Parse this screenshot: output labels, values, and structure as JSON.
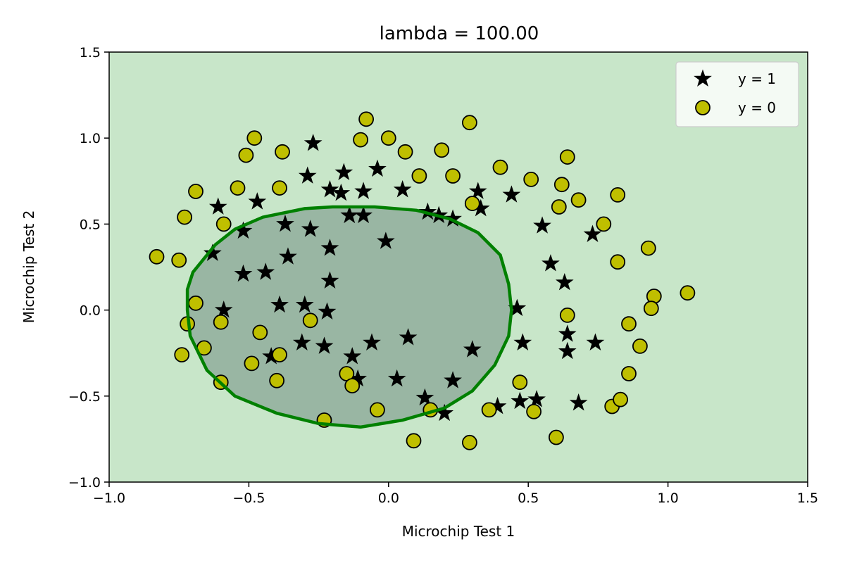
{
  "chart_data": {
    "type": "scatter",
    "title": "lambda = 100.00",
    "xlabel": "Microchip Test 1",
    "ylabel": "Microchip Test 2",
    "xlim": [
      -1.0,
      1.5
    ],
    "ylim": [
      -1.0,
      1.5
    ],
    "x_ticks": [
      "−1.0",
      "−0.5",
      "0.0",
      "0.5",
      "1.0",
      "1.5"
    ],
    "y_ticks": [
      "−1.0",
      "−0.5",
      "0.0",
      "0.5",
      "1.0",
      "1.5"
    ],
    "x_tick_values": [
      -1.0,
      -0.5,
      0.0,
      0.5,
      1.0,
      1.5
    ],
    "y_tick_values": [
      -1.0,
      -0.5,
      0.0,
      0.5,
      1.0,
      1.5
    ],
    "legend_position": "top-right",
    "colors": {
      "background_region": "#c8e6c9",
      "inner_region": "#99b6a3",
      "boundary": "#008000",
      "positive_marker": "#000000",
      "negative_marker": "#bfbf00"
    },
    "decision_boundary": {
      "name": "",
      "points": [
        [
          -0.72,
          0.12
        ],
        [
          -0.7,
          0.22
        ],
        [
          -0.62,
          0.38
        ],
        [
          -0.55,
          0.47
        ],
        [
          -0.45,
          0.54
        ],
        [
          -0.3,
          0.59
        ],
        [
          -0.2,
          0.6
        ],
        [
          -0.05,
          0.6
        ],
        [
          0.1,
          0.58
        ],
        [
          0.22,
          0.53
        ],
        [
          0.32,
          0.45
        ],
        [
          0.4,
          0.32
        ],
        [
          0.43,
          0.15
        ],
        [
          0.44,
          0.0
        ],
        [
          0.43,
          -0.15
        ],
        [
          0.38,
          -0.32
        ],
        [
          0.3,
          -0.47
        ],
        [
          0.2,
          -0.57
        ],
        [
          0.05,
          -0.64
        ],
        [
          -0.1,
          -0.68
        ],
        [
          -0.25,
          -0.66
        ],
        [
          -0.4,
          -0.6
        ],
        [
          -0.55,
          -0.5
        ],
        [
          -0.65,
          -0.35
        ],
        [
          -0.71,
          -0.15
        ],
        [
          -0.72,
          0.0
        ]
      ]
    },
    "series": [
      {
        "name": "y = 1",
        "marker": "star",
        "points": [
          [
            -0.27,
            0.97
          ],
          [
            -0.29,
            0.78
          ],
          [
            -0.16,
            0.8
          ],
          [
            -0.04,
            0.82
          ],
          [
            -0.21,
            0.7
          ],
          [
            -0.17,
            0.68
          ],
          [
            -0.09,
            0.69
          ],
          [
            0.05,
            0.7
          ],
          [
            -0.61,
            0.6
          ],
          [
            -0.47,
            0.63
          ],
          [
            -0.37,
            0.5
          ],
          [
            -0.28,
            0.47
          ],
          [
            -0.52,
            0.46
          ],
          [
            -0.14,
            0.55
          ],
          [
            -0.09,
            0.55
          ],
          [
            0.14,
            0.57
          ],
          [
            0.18,
            0.55
          ],
          [
            0.23,
            0.53
          ],
          [
            0.32,
            0.69
          ],
          [
            0.33,
            0.59
          ],
          [
            0.44,
            0.67
          ],
          [
            -0.63,
            0.33
          ],
          [
            -0.36,
            0.31
          ],
          [
            -0.21,
            0.36
          ],
          [
            -0.01,
            0.4
          ],
          [
            -0.52,
            0.21
          ],
          [
            -0.44,
            0.22
          ],
          [
            -0.21,
            0.17
          ],
          [
            0.55,
            0.49
          ],
          [
            0.58,
            0.27
          ],
          [
            0.63,
            0.16
          ],
          [
            0.73,
            0.44
          ],
          [
            -0.59,
            0.0
          ],
          [
            -0.39,
            0.03
          ],
          [
            -0.3,
            0.03
          ],
          [
            -0.22,
            -0.01
          ],
          [
            0.46,
            0.01
          ],
          [
            0.64,
            -0.14
          ],
          [
            -0.31,
            -0.19
          ],
          [
            -0.23,
            -0.21
          ],
          [
            -0.13,
            -0.27
          ],
          [
            -0.06,
            -0.19
          ],
          [
            0.07,
            -0.16
          ],
          [
            0.3,
            -0.23
          ],
          [
            0.48,
            -0.19
          ],
          [
            0.64,
            -0.24
          ],
          [
            0.74,
            -0.19
          ],
          [
            -0.42,
            -0.27
          ],
          [
            -0.11,
            -0.4
          ],
          [
            0.03,
            -0.4
          ],
          [
            0.23,
            -0.41
          ],
          [
            0.13,
            -0.51
          ],
          [
            0.47,
            -0.53
          ],
          [
            0.53,
            -0.52
          ],
          [
            0.68,
            -0.54
          ],
          [
            0.39,
            -0.56
          ],
          [
            0.2,
            -0.6
          ]
        ]
      },
      {
        "name": "y = 0",
        "marker": "circle",
        "points": [
          [
            -0.48,
            1.0
          ],
          [
            -0.51,
            0.9
          ],
          [
            -0.38,
            0.92
          ],
          [
            -0.08,
            1.11
          ],
          [
            -0.1,
            0.99
          ],
          [
            0.0,
            1.0
          ],
          [
            0.06,
            0.92
          ],
          [
            0.19,
            0.93
          ],
          [
            0.29,
            1.09
          ],
          [
            -0.69,
            0.69
          ],
          [
            -0.54,
            0.71
          ],
          [
            -0.39,
            0.71
          ],
          [
            0.11,
            0.78
          ],
          [
            0.23,
            0.78
          ],
          [
            0.4,
            0.83
          ],
          [
            0.51,
            0.76
          ],
          [
            0.62,
            0.73
          ],
          [
            0.64,
            0.89
          ],
          [
            -0.73,
            0.54
          ],
          [
            -0.59,
            0.5
          ],
          [
            0.3,
            0.62
          ],
          [
            0.61,
            0.6
          ],
          [
            0.68,
            0.64
          ],
          [
            0.82,
            0.67
          ],
          [
            0.77,
            0.5
          ],
          [
            -0.83,
            0.31
          ],
          [
            -0.75,
            0.29
          ],
          [
            0.82,
            0.28
          ],
          [
            0.93,
            0.36
          ],
          [
            -0.69,
            0.04
          ],
          [
            -0.72,
            -0.08
          ],
          [
            -0.6,
            -0.07
          ],
          [
            -0.46,
            -0.13
          ],
          [
            -0.28,
            -0.06
          ],
          [
            0.64,
            -0.03
          ],
          [
            0.95,
            0.08
          ],
          [
            1.07,
            0.1
          ],
          [
            0.94,
            0.01
          ],
          [
            0.86,
            -0.08
          ],
          [
            -0.74,
            -0.26
          ],
          [
            -0.66,
            -0.22
          ],
          [
            -0.49,
            -0.31
          ],
          [
            -0.39,
            -0.26
          ],
          [
            0.9,
            -0.21
          ],
          [
            0.86,
            -0.37
          ],
          [
            -0.6,
            -0.42
          ],
          [
            -0.4,
            -0.41
          ],
          [
            -0.15,
            -0.37
          ],
          [
            -0.13,
            -0.44
          ],
          [
            0.47,
            -0.42
          ],
          [
            -0.23,
            -0.64
          ],
          [
            -0.04,
            -0.58
          ],
          [
            0.15,
            -0.58
          ],
          [
            0.36,
            -0.58
          ],
          [
            0.52,
            -0.59
          ],
          [
            0.8,
            -0.56
          ],
          [
            0.83,
            -0.52
          ],
          [
            0.09,
            -0.76
          ],
          [
            0.29,
            -0.77
          ],
          [
            0.6,
            -0.74
          ]
        ]
      }
    ]
  }
}
